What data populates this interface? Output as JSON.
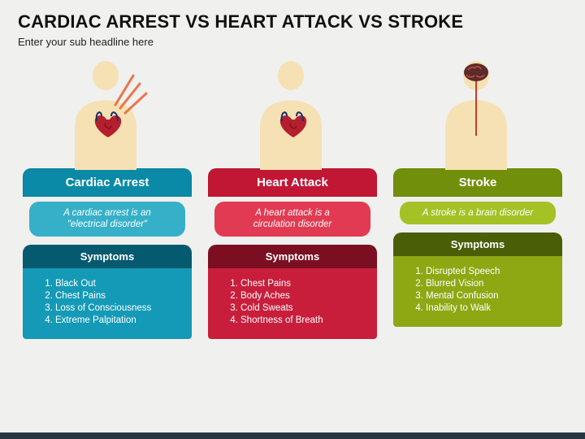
{
  "title": "CARDIAC ARREST VS HEART ATTACK VS STROKE",
  "subtitle": "Enter your sub headline here",
  "background": "#f0f0ee",
  "footer_bar_color": "#283642",
  "skin_color": "#f5e1b3",
  "columns": [
    {
      "name": "Cardiac Arrest",
      "tab_bg": "#0a8aa6",
      "desc_bg": "#36b0c9",
      "desc": "A cardiac arrest is an \"electrical disorder\"",
      "symp_tab_bg": "#065a70",
      "symp_body_bg": "#149ab6",
      "symptoms": [
        "Black Out",
        "Chest Pains",
        "Loss of Consciousness",
        "Extreme Palpitation"
      ],
      "figure_kind": "heart_radiate"
    },
    {
      "name": "Heart Attack",
      "tab_bg": "#c11735",
      "desc_bg": "#e23a52",
      "desc": "A heart attack is a circulation disorder",
      "symp_tab_bg": "#7b0f21",
      "symp_body_bg": "#c81e3c",
      "symptoms": [
        "Chest Pains",
        "Body Aches",
        "Cold Sweats",
        "Shortness of Breath"
      ],
      "figure_kind": "heart"
    },
    {
      "name": "Stroke",
      "tab_bg": "#728f0b",
      "desc_bg": "#a4c226",
      "desc": "A stroke is a brain disorder",
      "symp_tab_bg": "#4a5e07",
      "symp_body_bg": "#8da813",
      "symptoms": [
        "Disrupted Speech",
        "Blurred Vision",
        "Mental Confusion",
        "Inability to Walk"
      ],
      "figure_kind": "brain"
    }
  ]
}
